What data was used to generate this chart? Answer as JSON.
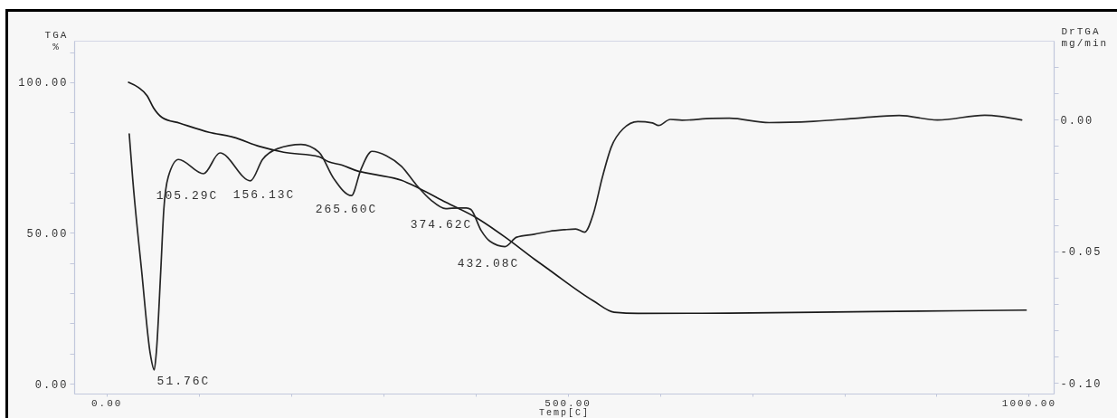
{
  "chart_data": {
    "type": "line",
    "xlabel": "Temp[C]",
    "ylabel": "TGA\n%",
    "y2label": "DrTGA\nmg/min",
    "xlim": [
      -35,
      1027
    ],
    "xticks": [
      {
        "value": 0,
        "label": "0.00"
      },
      {
        "value": 100,
        "label": null
      },
      {
        "value": 200,
        "label": null
      },
      {
        "value": 300,
        "label": null
      },
      {
        "value": 400,
        "label": null
      },
      {
        "value": 500,
        "label": "500.00"
      },
      {
        "value": 600,
        "label": null
      },
      {
        "value": 700,
        "label": null
      },
      {
        "value": 800,
        "label": null
      },
      {
        "value": 900,
        "label": null
      },
      {
        "value": 1000,
        "label": "1000.00"
      }
    ],
    "ylim": [
      -3.3,
      113.8
    ],
    "yticks": [
      {
        "value": 0,
        "label": "0.00"
      },
      {
        "value": 10,
        "label": null
      },
      {
        "value": 20,
        "label": null
      },
      {
        "value": 30,
        "label": null
      },
      {
        "value": 40,
        "label": null
      },
      {
        "value": 50,
        "label": "50.00"
      },
      {
        "value": 60,
        "label": null
      },
      {
        "value": 70,
        "label": null
      },
      {
        "value": 80,
        "label": null
      },
      {
        "value": 90,
        "label": null
      },
      {
        "value": 100,
        "label": "100.00"
      },
      {
        "value": 110,
        "label": null
      }
    ],
    "y2lim": [
      -0.104,
      0.03
    ],
    "y2ticks": [
      {
        "value": -0.1,
        "label": "-0.10"
      },
      {
        "value": -0.09,
        "label": null
      },
      {
        "value": -0.08,
        "label": null
      },
      {
        "value": -0.07,
        "label": null
      },
      {
        "value": -0.06,
        "label": null
      },
      {
        "value": -0.05,
        "label": "-0.05"
      },
      {
        "value": -0.04,
        "label": null
      },
      {
        "value": -0.03,
        "label": null
      },
      {
        "value": -0.02,
        "label": null
      },
      {
        "value": -0.01,
        "label": null
      },
      {
        "value": 0,
        "label": "0.00"
      },
      {
        "value": 0.01,
        "label": null
      },
      {
        "value": 0.02,
        "label": null
      }
    ],
    "series": [
      {
        "color": "#1a1a1a",
        "x": [
          24,
          34.6,
          44.2,
          50.9,
          60.5,
          79.7,
          111.4,
          137.4,
          166.2,
          192.1,
          230.5,
          240.2,
          255.5,
          271.9,
          291.1,
          319.9,
          339.1,
          367.9,
          399.6,
          432.3,
          464,
          480.3,
          528.3,
          550.4,
          576.4,
          675.3,
          831,
          997.1
        ],
        "values": [
          100,
          98.3,
          95.5,
          91.6,
          88.3,
          86.4,
          83.4,
          81.8,
          78.7,
          76.8,
          75.3,
          73.7,
          72.5,
          70.6,
          69.4,
          67.5,
          64.8,
          60.2,
          55.3,
          48.6,
          41.3,
          37.7,
          27.4,
          23.7,
          23.3,
          23.4,
          23.9,
          24.4
        ]
      },
      {
        "color": "#262626",
        "axis": "y2",
        "x": [
          24.7,
          28.5,
          38.1,
          47.7,
          51.76,
          54.1,
          58.9,
          62.2,
          67,
          78.1,
          105.29,
          123,
          156.13,
          169.4,
          185.4,
          211,
          230.3,
          246.2,
          265.6,
          276,
          287.9,
          303.6,
          319.9,
          335.9,
          351.8,
          367.9,
          374.62,
          390.3,
          395.1,
          406.3,
          415.9,
          432.08,
          444.8,
          464,
          480,
          496,
          508.8,
          518.4,
          528,
          537.7,
          547.3,
          560,
          576.1,
          592,
          598.5,
          611.3,
          624.1,
          656.1,
          675.3,
          718.5,
          766.6,
          814.6,
          859.5,
          901,
          952.3,
          992.3
        ],
        "values": [
          -0.0054,
          -0.0226,
          -0.0572,
          -0.0893,
          -0.095,
          -0.0883,
          -0.0573,
          -0.0341,
          -0.0217,
          -0.0151,
          -0.0205,
          -0.0126,
          -0.0232,
          -0.015,
          -0.011,
          -0.0094,
          -0.0123,
          -0.0222,
          -0.0288,
          -0.0188,
          -0.012,
          -0.0137,
          -0.0177,
          -0.0247,
          -0.0305,
          -0.0338,
          -0.0336,
          -0.0335,
          -0.0341,
          -0.0421,
          -0.0462,
          -0.0482,
          -0.0446,
          -0.0435,
          -0.0424,
          -0.0418,
          -0.0415,
          -0.0427,
          -0.0356,
          -0.0218,
          -0.0104,
          -0.0035,
          -0.0007,
          -0.0012,
          -0.0022,
          0.0001,
          -0.0002,
          0.0005,
          0.0006,
          -0.0011,
          -0.0006,
          0.0006,
          0.0016,
          -0.0001,
          0.0017,
          -0.0001
        ]
      }
    ],
    "annotations": [
      "51.76C",
      "105.29C",
      "156.13C",
      "265.60C",
      "374.62C",
      "432.08C"
    ],
    "grid": false
  }
}
